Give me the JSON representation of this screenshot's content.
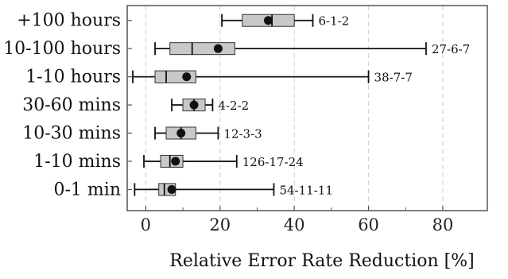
{
  "chart_data": {
    "type": "box",
    "xlabel": "Relative Error Rate Reduction [%]",
    "ylabel": "",
    "xlim": [
      -5,
      92
    ],
    "xticks": [
      0,
      20,
      40,
      60,
      80
    ],
    "grid": "vertical dashed",
    "box_color": "#c8c8c8",
    "categories": [
      "+100 hours",
      "10-100 hours",
      "1-10 hours",
      "30-60 mins",
      "10-30 mins",
      "1-10 mins",
      "0-1 min"
    ],
    "boxes": [
      {
        "category": "+100 hours",
        "whisker_low": 20.5,
        "q1": 26,
        "median": 34,
        "q3": 40,
        "whisker_high": 45,
        "mean": 33,
        "label": "6-1-2"
      },
      {
        "category": "10-100 hours",
        "whisker_low": 2.5,
        "q1": 6.5,
        "median": 12.5,
        "q3": 24,
        "whisker_high": 75.5,
        "mean": 19.5,
        "label": "27-6-7"
      },
      {
        "category": "1-10 hours",
        "whisker_low": -3.5,
        "q1": 2.5,
        "median": 5.5,
        "q3": 13.5,
        "whisker_high": 60,
        "mean": 11,
        "label": "38-7-7"
      },
      {
        "category": "30-60 mins",
        "whisker_low": 7,
        "q1": 10,
        "median": 13,
        "q3": 16,
        "whisker_high": 18,
        "mean": 13,
        "label": "4-2-2"
      },
      {
        "category": "10-30 mins",
        "whisker_low": 2.5,
        "q1": 5.5,
        "median": 9.5,
        "q3": 13.5,
        "whisker_high": 19.5,
        "mean": 9.5,
        "label": "12-3-3"
      },
      {
        "category": "1-10 mins",
        "whisker_low": -0.5,
        "q1": 4,
        "median": 6.5,
        "q3": 10,
        "whisker_high": 24.5,
        "mean": 8,
        "label": "126-17-24"
      },
      {
        "category": "0-1 min",
        "whisker_low": -3,
        "q1": 3.5,
        "median": 5,
        "q3": 8,
        "whisker_high": 34.5,
        "mean": 7,
        "label": "54-11-11"
      }
    ]
  }
}
